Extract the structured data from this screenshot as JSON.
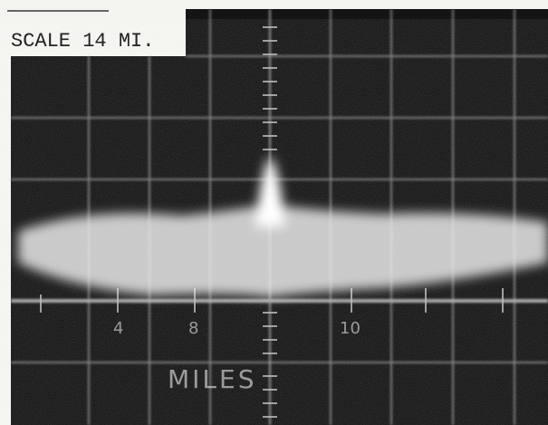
{
  "scale_label": "SCALE 14 MI.",
  "axis": {
    "unit_label": "MILES",
    "tick_labels": [
      "4",
      "8",
      "10"
    ]
  }
}
